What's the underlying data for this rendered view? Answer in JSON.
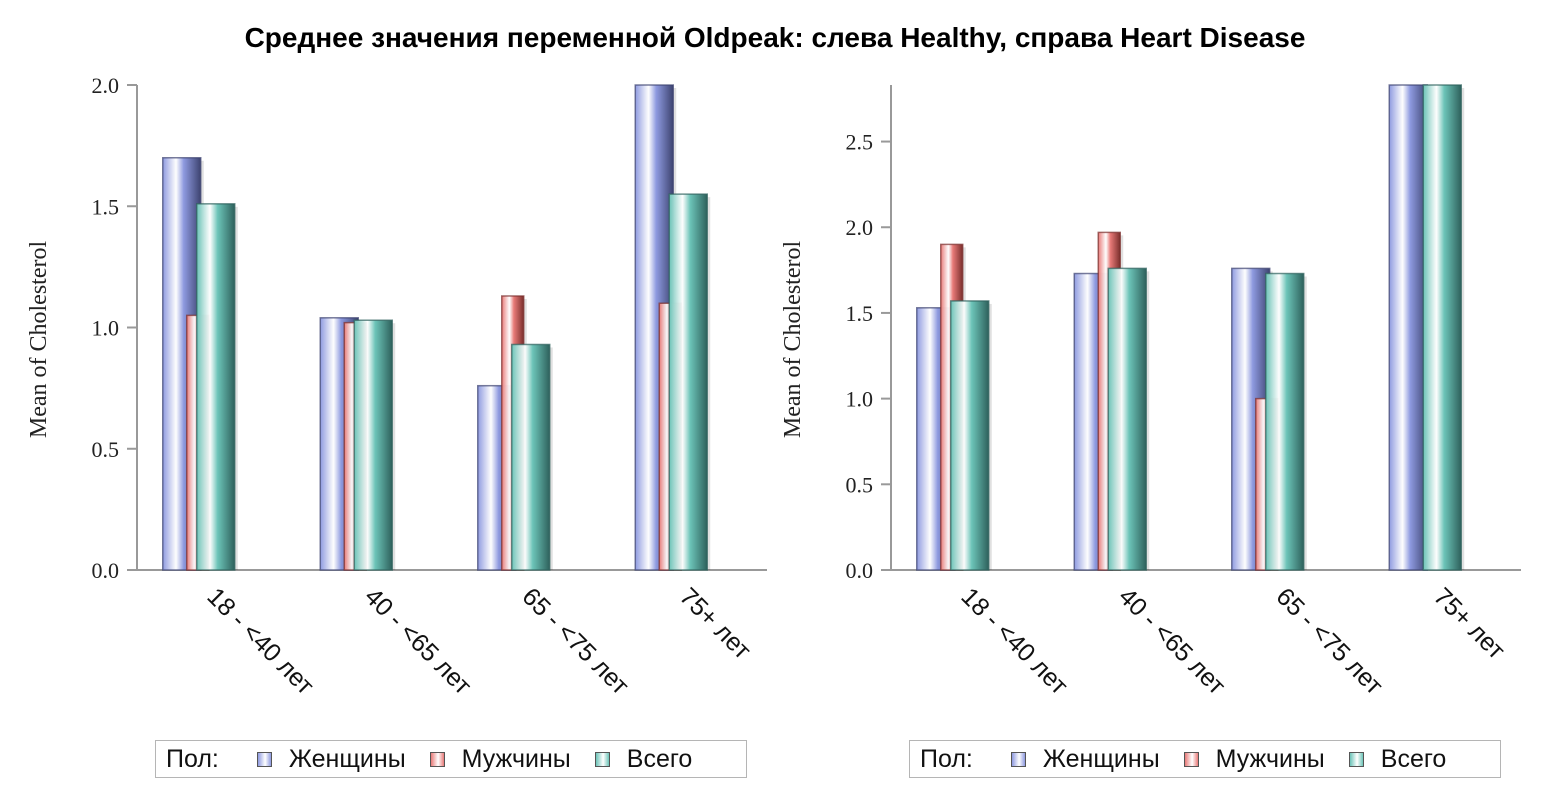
{
  "title": "Среднее значения переменной Oldpeak: слева Healthy, справа Heart Disease",
  "legend": {
    "title": "Пол:",
    "items": [
      {
        "label": "Женщины",
        "color": "#8e9ae0"
      },
      {
        "label": "Мужчины",
        "color": "#e87a78"
      },
      {
        "label": "Всего",
        "color": "#6cc4b8"
      }
    ]
  },
  "chart_data": [
    {
      "type": "bar",
      "title": "",
      "ylabel": "Mean of Cholesterol",
      "xlabel": "",
      "categories": [
        "18 - <40 лет",
        "40 - <65 лет",
        "65 - <75 лет",
        "75+ лет"
      ],
      "ylim": [
        0,
        2.0
      ],
      "yticks": [
        "0.0",
        "0.5",
        "1.0",
        "1.5",
        "2.0"
      ],
      "series": [
        {
          "name": "Женщины",
          "values": [
            1.7,
            1.04,
            0.76,
            2.0
          ]
        },
        {
          "name": "Мужчины",
          "values": [
            1.05,
            1.02,
            1.13,
            1.1
          ]
        },
        {
          "name": "Всего",
          "values": [
            1.51,
            1.03,
            0.93,
            1.55
          ]
        }
      ],
      "legend_position": "bottom"
    },
    {
      "type": "bar",
      "title": "",
      "ylabel": "Mean of Cholesterol",
      "xlabel": "",
      "categories": [
        "18 - <40 лет",
        "40 - <65 лет",
        "65 - <75 лет",
        "75+ лет"
      ],
      "ylim": [
        0,
        2.83
      ],
      "yticks": [
        "0.0",
        "0.5",
        "1.0",
        "1.5",
        "2.0",
        "2.5"
      ],
      "series": [
        {
          "name": "Женщины",
          "values": [
            1.53,
            1.73,
            1.76,
            2.83
          ]
        },
        {
          "name": "Мужчины",
          "values": [
            1.9,
            1.97,
            1.0,
            0.0
          ]
        },
        {
          "name": "Всего",
          "values": [
            1.57,
            1.76,
            1.73,
            2.83
          ]
        }
      ],
      "legend_position": "bottom"
    }
  ]
}
